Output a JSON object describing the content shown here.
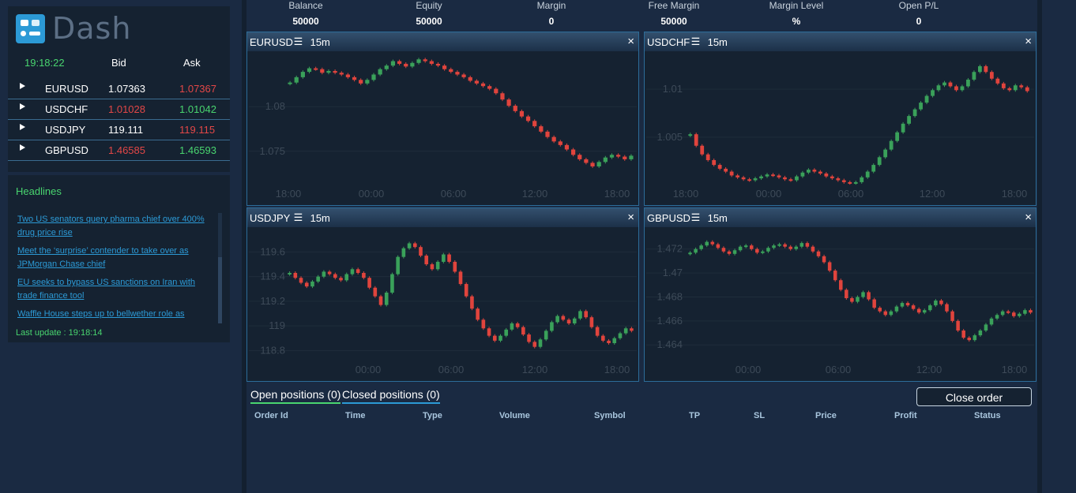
{
  "app": {
    "logo_text": "Dash"
  },
  "quotes": {
    "clock": "19:18:22",
    "bid_label": "Bid",
    "ask_label": "Ask",
    "rows": [
      {
        "symbol": "EURUSD",
        "bid": "1.07363",
        "ask": "1.07367",
        "bid_dir": "neutral",
        "ask_dir": "down"
      },
      {
        "symbol": "USDCHF",
        "bid": "1.01028",
        "ask": "1.01042",
        "bid_dir": "down",
        "ask_dir": "up"
      },
      {
        "symbol": "USDJPY",
        "bid": "119.111",
        "ask": "119.115",
        "bid_dir": "neutral",
        "ask_dir": "down"
      },
      {
        "symbol": "GBPUSD",
        "bid": "1.46585",
        "ask": "1.46593",
        "bid_dir": "down",
        "ask_dir": "up"
      }
    ]
  },
  "news": {
    "title": "Headlines",
    "items": [
      "Two US senators query pharma chief over 400% drug price rise",
      "Meet the ‘surprise’ contender to take over as JPMorgan Chase chief",
      "EU seeks to bypass US sanctions on Iran with trade finance tool",
      "Waffle House steps up to bellwether role as"
    ],
    "last_update_label": "Last update : ",
    "last_update": "19:18:14"
  },
  "account": {
    "items": [
      {
        "label": "Balance",
        "value": "50000"
      },
      {
        "label": "Equity",
        "value": "50000"
      },
      {
        "label": "Margin",
        "value": "0"
      },
      {
        "label": "Free Margin",
        "value": "50000"
      },
      {
        "label": "Margin Level",
        "value": "%"
      },
      {
        "label": "Open P/L",
        "value": "0"
      }
    ]
  },
  "colors": {
    "up": "#3aa15a",
    "down": "#e0443d",
    "accent": "#2c9ad6",
    "green_text": "#49d56f"
  },
  "icons": {
    "menu": "hamburger-icon",
    "close": "close-icon",
    "expand": "triangle-right-icon"
  },
  "chart_data": [
    {
      "type": "candlestick",
      "title": "EURUSD",
      "timeframe": "15m",
      "x_ticks": [
        "18:00",
        "00:00",
        "06:00",
        "12:00",
        "18:00"
      ],
      "y_ticks": [
        "1.08",
        "1.075"
      ],
      "ylim": [
        1.071,
        1.0855
      ],
      "closes": [
        1.0827,
        1.0833,
        1.0839,
        1.0843,
        1.0842,
        1.0838,
        1.084,
        1.0838,
        1.0836,
        1.0833,
        1.083,
        1.0826,
        1.083,
        1.0836,
        1.0842,
        1.0846,
        1.0851,
        1.0848,
        1.0845,
        1.0849,
        1.0853,
        1.0851,
        1.0848,
        1.0846,
        1.0842,
        1.0839,
        1.0836,
        1.0833,
        1.0829,
        1.0826,
        1.0823,
        1.082,
        1.0815,
        1.0808,
        1.0801,
        1.0795,
        1.0789,
        1.0784,
        1.0778,
        1.0772,
        1.0766,
        1.0761,
        1.0757,
        1.0752,
        1.0746,
        1.0741,
        1.0737,
        1.0733,
        1.0738,
        1.0743,
        1.0746,
        1.0744,
        1.0741,
        1.0745
      ]
    },
    {
      "type": "candlestick",
      "title": "USDCHF",
      "timeframe": "15m",
      "x_ticks": [
        "18:00",
        "00:00",
        "06:00",
        "12:00",
        "18:00"
      ],
      "y_ticks": [
        "1.01",
        "1.005"
      ],
      "ylim": [
        0.9998,
        1.0133
      ],
      "closes": [
        1.0053,
        1.0041,
        1.0032,
        1.0026,
        1.0021,
        1.0017,
        1.0014,
        1.001,
        1.0008,
        1.0006,
        1.0005,
        1.0007,
        1.0009,
        1.0011,
        1.001,
        1.0008,
        1.0006,
        1.0005,
        1.0009,
        1.0013,
        1.0016,
        1.0014,
        1.0012,
        1.0009,
        1.0007,
        1.0005,
        1.0003,
        1.0002,
        1.0003,
        1.0008,
        1.0014,
        1.0021,
        1.0029,
        1.0037,
        1.0046,
        1.0055,
        1.0064,
        1.0072,
        1.0079,
        1.0086,
        1.0093,
        1.0099,
        1.0104,
        1.0107,
        1.0103,
        1.0099,
        1.0103,
        1.011,
        1.0118,
        1.0124,
        1.0118,
        1.0111,
        1.0106,
        1.0101,
        1.0099,
        1.0104,
        1.0102,
        1.0098
      ]
    },
    {
      "type": "candlestick",
      "title": "USDJPY",
      "timeframe": "15m",
      "x_ticks": [
        "00:00",
        "06:00",
        "12:00",
        "18:00"
      ],
      "y_ticks": [
        "119.6",
        "119.4",
        "119.2",
        "119",
        "118.8"
      ],
      "ylim": [
        118.7,
        119.75
      ],
      "closes": [
        119.43,
        119.39,
        119.35,
        119.32,
        119.36,
        119.4,
        119.44,
        119.42,
        119.39,
        119.37,
        119.42,
        119.46,
        119.43,
        119.39,
        119.31,
        119.24,
        119.17,
        119.27,
        119.42,
        119.56,
        119.63,
        119.67,
        119.64,
        119.57,
        119.5,
        119.46,
        119.52,
        119.58,
        119.52,
        119.44,
        119.34,
        119.24,
        119.14,
        119.05,
        118.98,
        118.92,
        118.88,
        118.92,
        118.97,
        119.02,
        118.99,
        118.93,
        118.87,
        118.83,
        118.89,
        118.96,
        119.03,
        119.08,
        119.05,
        119.02,
        119.06,
        119.12,
        119.07,
        118.99,
        118.92,
        118.88,
        118.86,
        118.9,
        118.94,
        118.98,
        118.96
      ]
    },
    {
      "type": "candlestick",
      "title": "GBPUSD",
      "timeframe": "15m",
      "x_ticks": [
        "00:00",
        "06:00",
        "12:00",
        "18:00"
      ],
      "y_ticks": [
        "1.472",
        "1.47",
        "1.468",
        "1.466",
        "1.464"
      ],
      "ylim": [
        1.4625,
        1.4733
      ],
      "closes": [
        1.4717,
        1.472,
        1.4723,
        1.4726,
        1.4724,
        1.4721,
        1.4718,
        1.4716,
        1.4719,
        1.4722,
        1.4723,
        1.472,
        1.4717,
        1.4718,
        1.4721,
        1.4723,
        1.4724,
        1.4722,
        1.472,
        1.4722,
        1.4725,
        1.4722,
        1.4718,
        1.4714,
        1.4709,
        1.4702,
        1.4694,
        1.4686,
        1.4679,
        1.4676,
        1.468,
        1.4684,
        1.4678,
        1.4671,
        1.4668,
        1.4665,
        1.4668,
        1.4672,
        1.4675,
        1.4673,
        1.467,
        1.4667,
        1.4669,
        1.4673,
        1.4677,
        1.4674,
        1.4668,
        1.466,
        1.4652,
        1.4646,
        1.4644,
        1.4648,
        1.4652,
        1.4657,
        1.4662,
        1.4665,
        1.4668,
        1.4667,
        1.4664,
        1.4666,
        1.4669,
        1.4667
      ]
    }
  ],
  "positions": {
    "tab_open": "Open positions (0)",
    "tab_closed": "Closed positions (0)",
    "close_order_label": "Close order",
    "columns": [
      "Order Id",
      "Time",
      "Type",
      "Volume",
      "Symbol",
      "TP",
      "SL",
      "Price",
      "Profit",
      "Status"
    ]
  }
}
